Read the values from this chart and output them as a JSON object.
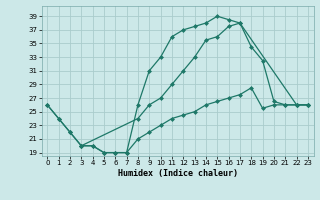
{
  "xlabel": "Humidex (Indice chaleur)",
  "bg_color": "#cce8e8",
  "grid_color": "#aacccc",
  "line_color": "#1e7868",
  "xlim": [
    -0.5,
    23.5
  ],
  "ylim": [
    18.5,
    40.5
  ],
  "xticks": [
    0,
    1,
    2,
    3,
    4,
    5,
    6,
    7,
    8,
    9,
    10,
    11,
    12,
    13,
    14,
    15,
    16,
    17,
    18,
    19,
    20,
    21,
    22,
    23
  ],
  "yticks": [
    19,
    21,
    23,
    25,
    27,
    29,
    31,
    33,
    35,
    37,
    39
  ],
  "curve1_x": [
    0,
    1,
    2,
    3,
    4,
    5,
    6,
    7,
    8,
    9,
    10,
    11,
    12,
    13,
    14,
    15,
    16,
    17,
    22,
    23
  ],
  "curve1_y": [
    26,
    24,
    22,
    20,
    20,
    19,
    19,
    19,
    26,
    31,
    33,
    36,
    37,
    37.5,
    38,
    39,
    38.5,
    38,
    26,
    26
  ],
  "curve2_x": [
    0,
    1,
    2,
    3,
    8,
    9,
    10,
    11,
    12,
    13,
    14,
    15,
    16,
    17,
    18,
    19,
    20,
    21,
    22,
    23
  ],
  "curve2_y": [
    26,
    24,
    22,
    20,
    24,
    26,
    27,
    29,
    31,
    33,
    35.5,
    36,
    37.5,
    38,
    34.5,
    32.5,
    26.5,
    26,
    26,
    26
  ],
  "curve3_x": [
    3,
    4,
    5,
    6,
    7,
    8,
    9,
    10,
    11,
    12,
    13,
    14,
    15,
    16,
    17,
    18,
    19,
    20,
    21,
    22,
    23
  ],
  "curve3_y": [
    20,
    20,
    19,
    19,
    19,
    21,
    22,
    23,
    24,
    24.5,
    25,
    26,
    26.5,
    27,
    27.5,
    28.5,
    25.5,
    26,
    26,
    26,
    26
  ]
}
